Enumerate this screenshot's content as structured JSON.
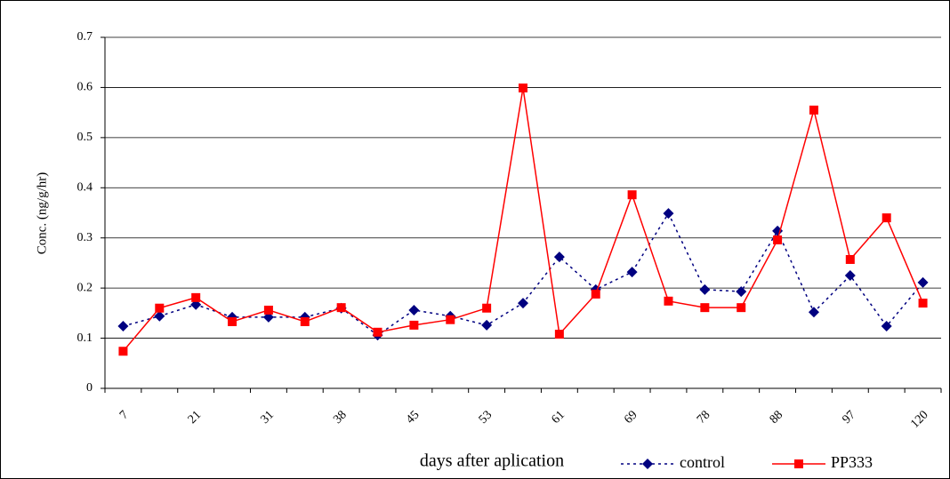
{
  "chart_data": {
    "type": "line",
    "y_label": "Conc. (ng/g/hr)",
    "x_label": "days after aplication",
    "categories": [
      "7",
      null,
      "21",
      null,
      "31",
      null,
      "38",
      null,
      "45",
      null,
      "53",
      null,
      "61",
      null,
      "69",
      null,
      "78",
      null,
      "88",
      null,
      "97",
      null,
      "120"
    ],
    "series": [
      {
        "name": "control",
        "color": "#000080",
        "dashed": true,
        "marker": "diamond",
        "values": [
          0.124,
          0.144,
          0.167,
          0.142,
          0.142,
          0.142,
          0.16,
          0.106,
          0.156,
          0.144,
          0.126,
          0.17,
          0.262,
          0.197,
          0.232,
          0.349,
          0.197,
          0.193,
          0.314,
          0.152,
          0.225,
          0.124,
          0.211
        ]
      },
      {
        "name": "PP333",
        "color": "#ff0000",
        "dashed": false,
        "marker": "square",
        "values": [
          0.074,
          0.16,
          0.181,
          0.133,
          0.156,
          0.133,
          0.161,
          0.112,
          0.126,
          0.137,
          0.16,
          0.599,
          0.108,
          0.188,
          0.386,
          0.174,
          0.161,
          0.161,
          0.296,
          0.555,
          0.257,
          0.34,
          0.17
        ]
      }
    ],
    "ylim": [
      0,
      0.7
    ],
    "yticks": [
      0,
      0.1,
      0.2,
      0.3,
      0.4,
      0.5,
      0.6,
      0.7
    ],
    "grid": true,
    "legend": "bottom-right"
  }
}
